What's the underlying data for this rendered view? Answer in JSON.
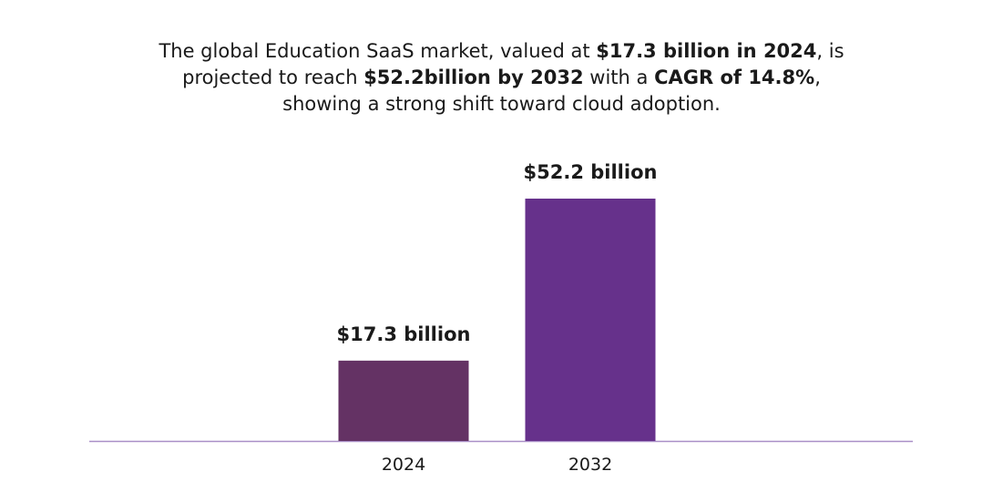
{
  "headline": {
    "line1": {
      "t1": "The global Education SaaS market, valued at ",
      "b1": "$17.3 billion in 2024",
      "t2": ", is"
    },
    "line2": {
      "t1": "projected to reach ",
      "b1": "$52.2billion by 2032",
      "t2": " with a ",
      "b2": "CAGR of 14.8%",
      "t3": ","
    },
    "line3": {
      "t1": "showing a strong shift toward cloud adoption."
    }
  },
  "chart_data": {
    "type": "bar",
    "title": "",
    "xlabel": "",
    "ylabel": "",
    "categories": [
      "2024",
      "2032"
    ],
    "values": [
      17.3,
      52.2
    ],
    "data_labels": [
      "$17.3 billion",
      "$52.2 billion"
    ],
    "bar_colors": [
      "#643264",
      "#66318b"
    ],
    "axis_color": "#a98fc7",
    "ylim": [
      0,
      52.2
    ],
    "grid": false,
    "legend": "none"
  }
}
